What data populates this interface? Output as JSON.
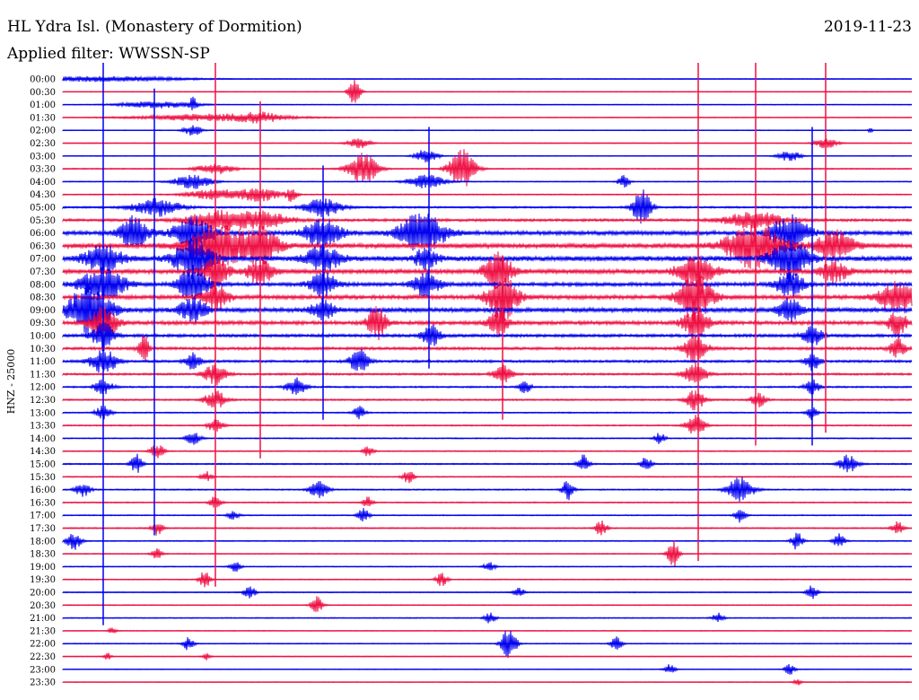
{
  "header": {
    "station": "HL Ydra Isl. (Monastery of Dormition)",
    "date": "2019-11-23",
    "filter": "Applied filter: WWSSN-SP"
  },
  "colors": {
    "blue": "#0000ee",
    "red": "#ee1144"
  },
  "chart_data": {
    "type": "helicorder",
    "title": "HL Ydra Isl. (Monastery of Dormition)",
    "ylabel": "HNZ - 25000",
    "traces": [
      {
        "label": "00:00",
        "color": "blue",
        "noise": 0.4,
        "events": [
          [
            115,
            90,
            3
          ]
        ]
      },
      {
        "label": "00:30",
        "color": "red",
        "noise": 0.4,
        "events": [
          [
            395,
            6,
            20
          ]
        ]
      },
      {
        "label": "01:00",
        "color": "blue",
        "noise": 0.4,
        "events": [
          [
            175,
            40,
            4
          ],
          [
            215,
            4,
            8
          ]
        ]
      },
      {
        "label": "01:30",
        "color": "red",
        "noise": 0.4,
        "events": [
          [
            240,
            80,
            4
          ],
          [
            290,
            20,
            4
          ]
        ]
      },
      {
        "label": "02:00",
        "color": "blue",
        "noise": 0.4,
        "events": [
          [
            215,
            10,
            6
          ],
          [
            970,
            2,
            4
          ]
        ]
      },
      {
        "label": "02:30",
        "color": "red",
        "noise": 0.4,
        "events": [
          [
            400,
            12,
            6
          ],
          [
            920,
            12,
            6
          ]
        ]
      },
      {
        "label": "03:00",
        "color": "blue",
        "noise": 0.4,
        "events": [
          [
            475,
            12,
            8
          ],
          [
            880,
            12,
            6
          ]
        ]
      },
      {
        "label": "03:30",
        "color": "red",
        "noise": 0.6,
        "events": [
          [
            405,
            16,
            18
          ],
          [
            515,
            14,
            22
          ],
          [
            240,
            20,
            6
          ]
        ]
      },
      {
        "label": "04:00",
        "color": "blue",
        "noise": 0.5,
        "events": [
          [
            215,
            20,
            8
          ],
          [
            695,
            6,
            8
          ],
          [
            475,
            20,
            8
          ]
        ]
      },
      {
        "label": "04:30",
        "color": "red",
        "noise": 0.6,
        "events": [
          [
            290,
            20,
            8
          ],
          [
            240,
            30,
            6
          ],
          [
            325,
            6,
            8
          ]
        ]
      },
      {
        "label": "05:00",
        "color": "blue",
        "noise": 1.0,
        "events": [
          [
            175,
            25,
            10
          ],
          [
            360,
            20,
            10
          ],
          [
            715,
            10,
            20
          ]
        ]
      },
      {
        "label": "05:30",
        "color": "red",
        "noise": 1.4,
        "events": [
          [
            240,
            30,
            10
          ],
          [
            290,
            30,
            10
          ],
          [
            840,
            30,
            10
          ]
        ]
      },
      {
        "label": "06:00",
        "color": "blue",
        "noise": 2.2,
        "events": [
          [
            150,
            15,
            20
          ],
          [
            215,
            20,
            20
          ],
          [
            360,
            20,
            16
          ],
          [
            470,
            25,
            22
          ],
          [
            880,
            20,
            20
          ]
        ]
      },
      {
        "label": "06:30",
        "color": "red",
        "noise": 2.6,
        "events": [
          [
            240,
            30,
            24
          ],
          [
            290,
            20,
            20
          ],
          [
            840,
            30,
            24
          ],
          [
            930,
            20,
            16
          ]
        ]
      },
      {
        "label": "07:00",
        "color": "blue",
        "noise": 2.8,
        "events": [
          [
            115,
            20,
            14
          ],
          [
            215,
            20,
            22
          ],
          [
            360,
            18,
            14
          ],
          [
            475,
            12,
            12
          ],
          [
            880,
            20,
            22
          ]
        ]
      },
      {
        "label": "07:30",
        "color": "red",
        "noise": 2.4,
        "events": [
          [
            240,
            14,
            16
          ],
          [
            290,
            14,
            14
          ],
          [
            555,
            14,
            24
          ],
          [
            775,
            20,
            16
          ],
          [
            930,
            14,
            12
          ]
        ]
      },
      {
        "label": "08:00",
        "color": "blue",
        "noise": 2.0,
        "events": [
          [
            115,
            24,
            18
          ],
          [
            215,
            16,
            20
          ],
          [
            360,
            14,
            14
          ],
          [
            475,
            14,
            14
          ],
          [
            880,
            14,
            16
          ]
        ]
      },
      {
        "label": "08:30",
        "color": "red",
        "noise": 2.2,
        "events": [
          [
            240,
            14,
            14
          ],
          [
            560,
            16,
            26
          ],
          [
            775,
            18,
            26
          ],
          [
            1000,
            20,
            20
          ]
        ]
      },
      {
        "label": "09:00",
        "color": "blue",
        "noise": 2.4,
        "events": [
          [
            100,
            22,
            30
          ],
          [
            215,
            14,
            14
          ],
          [
            360,
            12,
            12
          ],
          [
            880,
            12,
            14
          ]
        ]
      },
      {
        "label": "09:30",
        "color": "red",
        "noise": 2.0,
        "events": [
          [
            115,
            14,
            20
          ],
          [
            420,
            10,
            20
          ],
          [
            555,
            10,
            16
          ],
          [
            775,
            14,
            16
          ],
          [
            1000,
            10,
            14
          ]
        ]
      },
      {
        "label": "10:00",
        "color": "blue",
        "noise": 1.6,
        "events": [
          [
            115,
            12,
            16
          ],
          [
            480,
            10,
            12
          ],
          [
            905,
            10,
            12
          ]
        ]
      },
      {
        "label": "10:30",
        "color": "red",
        "noise": 1.5,
        "events": [
          [
            160,
            6,
            14
          ],
          [
            775,
            12,
            16
          ],
          [
            1000,
            8,
            12
          ]
        ]
      },
      {
        "label": "11:00",
        "color": "blue",
        "noise": 1.3,
        "events": [
          [
            115,
            14,
            14
          ],
          [
            215,
            8,
            10
          ],
          [
            400,
            10,
            14
          ],
          [
            905,
            8,
            10
          ]
        ]
      },
      {
        "label": "11:30",
        "color": "red",
        "noise": 1.1,
        "events": [
          [
            240,
            12,
            12
          ],
          [
            560,
            10,
            10
          ],
          [
            775,
            12,
            12
          ]
        ]
      },
      {
        "label": "12:00",
        "color": "blue",
        "noise": 0.9,
        "events": [
          [
            115,
            10,
            8
          ],
          [
            330,
            10,
            10
          ],
          [
            585,
            6,
            8
          ],
          [
            905,
            8,
            8
          ]
        ]
      },
      {
        "label": "12:30",
        "color": "red",
        "noise": 0.8,
        "events": [
          [
            240,
            12,
            10
          ],
          [
            775,
            10,
            12
          ],
          [
            845,
            8,
            8
          ]
        ]
      },
      {
        "label": "13:00",
        "color": "blue",
        "noise": 0.7,
        "events": [
          [
            115,
            8,
            8
          ],
          [
            400,
            6,
            8
          ],
          [
            905,
            6,
            8
          ]
        ]
      },
      {
        "label": "13:30",
        "color": "red",
        "noise": 0.7,
        "events": [
          [
            240,
            8,
            8
          ],
          [
            775,
            10,
            12
          ]
        ]
      },
      {
        "label": "14:00",
        "color": "blue",
        "noise": 0.6,
        "events": [
          [
            215,
            8,
            8
          ],
          [
            735,
            6,
            6
          ]
        ]
      },
      {
        "label": "14:30",
        "color": "red",
        "noise": 0.6,
        "events": [
          [
            175,
            8,
            8
          ],
          [
            410,
            6,
            6
          ]
        ]
      },
      {
        "label": "15:00",
        "color": "blue",
        "noise": 0.7,
        "events": [
          [
            152,
            6,
            12
          ],
          [
            650,
            6,
            10
          ],
          [
            945,
            10,
            10
          ],
          [
            720,
            6,
            8
          ]
        ]
      },
      {
        "label": "15:30",
        "color": "red",
        "noise": 0.6,
        "events": [
          [
            455,
            6,
            8
          ],
          [
            230,
            6,
            6
          ]
        ]
      },
      {
        "label": "16:00",
        "color": "blue",
        "noise": 0.7,
        "events": [
          [
            92,
            8,
            8
          ],
          [
            355,
            10,
            10
          ],
          [
            633,
            6,
            12
          ],
          [
            825,
            14,
            14
          ]
        ]
      },
      {
        "label": "16:30",
        "color": "red",
        "noise": 0.6,
        "events": [
          [
            240,
            6,
            8
          ],
          [
            410,
            6,
            6
          ]
        ]
      },
      {
        "label": "17:00",
        "color": "blue",
        "noise": 0.6,
        "events": [
          [
            260,
            6,
            6
          ],
          [
            405,
            6,
            8
          ],
          [
            825,
            6,
            8
          ]
        ]
      },
      {
        "label": "17:30",
        "color": "red",
        "noise": 0.6,
        "events": [
          [
            175,
            6,
            8
          ],
          [
            670,
            6,
            10
          ],
          [
            1000,
            6,
            8
          ]
        ]
      },
      {
        "label": "18:00",
        "color": "blue",
        "noise": 0.6,
        "events": [
          [
            82,
            8,
            10
          ],
          [
            888,
            6,
            10
          ],
          [
            935,
            6,
            8
          ]
        ]
      },
      {
        "label": "18:30",
        "color": "red",
        "noise": 0.5,
        "events": [
          [
            750,
            6,
            16
          ],
          [
            175,
            6,
            6
          ]
        ]
      },
      {
        "label": "19:00",
        "color": "blue",
        "noise": 0.5,
        "events": [
          [
            262,
            6,
            6
          ],
          [
            545,
            6,
            6
          ]
        ]
      },
      {
        "label": "19:30",
        "color": "red",
        "noise": 0.5,
        "events": [
          [
            228,
            6,
            10
          ],
          [
            492,
            6,
            8
          ]
        ]
      },
      {
        "label": "20:00",
        "color": "blue",
        "noise": 0.5,
        "events": [
          [
            278,
            6,
            8
          ],
          [
            905,
            6,
            8
          ],
          [
            578,
            6,
            6
          ]
        ]
      },
      {
        "label": "20:30",
        "color": "red",
        "noise": 0.5,
        "events": [
          [
            353,
            6,
            10
          ]
        ]
      },
      {
        "label": "21:00",
        "color": "blue",
        "noise": 0.5,
        "events": [
          [
            546,
            6,
            6
          ],
          [
            800,
            6,
            6
          ]
        ]
      },
      {
        "label": "21:30",
        "color": "red",
        "noise": 0.4,
        "events": [
          [
            125,
            4,
            4
          ]
        ]
      },
      {
        "label": "22:00",
        "color": "blue",
        "noise": 0.5,
        "events": [
          [
            210,
            6,
            8
          ],
          [
            567,
            8,
            18
          ],
          [
            687,
            6,
            8
          ]
        ]
      },
      {
        "label": "22:30",
        "color": "red",
        "noise": 0.4,
        "events": [
          [
            120,
            4,
            4
          ],
          [
            230,
            4,
            4
          ]
        ]
      },
      {
        "label": "23:00",
        "color": "blue",
        "noise": 0.4,
        "events": [
          [
            746,
            6,
            6
          ],
          [
            880,
            6,
            6
          ]
        ]
      },
      {
        "label": "23:30",
        "color": "red",
        "noise": 0.4,
        "events": [
          [
            888,
            4,
            4
          ]
        ]
      }
    ],
    "spikes": [
      {
        "x": 115,
        "from": "00:00",
        "to": "21:00",
        "color": "blue"
      },
      {
        "x": 172,
        "from": "01:00",
        "to": "17:30",
        "color": "blue"
      },
      {
        "x": 240,
        "from": "00:00",
        "to": "19:30",
        "color": "red"
      },
      {
        "x": 290,
        "from": "01:30",
        "to": "14:30",
        "color": "red"
      },
      {
        "x": 360,
        "from": "04:00",
        "to": "13:00",
        "color": "blue"
      },
      {
        "x": 478,
        "from": "02:30",
        "to": "11:00",
        "color": "blue"
      },
      {
        "x": 560,
        "from": "07:30",
        "to": "13:00",
        "color": "red"
      },
      {
        "x": 778,
        "from": "00:00",
        "to": "18:30",
        "color": "red"
      },
      {
        "x": 842,
        "from": "00:00",
        "to": "14:00",
        "color": "red"
      },
      {
        "x": 905,
        "from": "02:30",
        "to": "14:00",
        "color": "blue"
      },
      {
        "x": 920,
        "from": "00:00",
        "to": "13:30",
        "color": "red"
      }
    ]
  }
}
